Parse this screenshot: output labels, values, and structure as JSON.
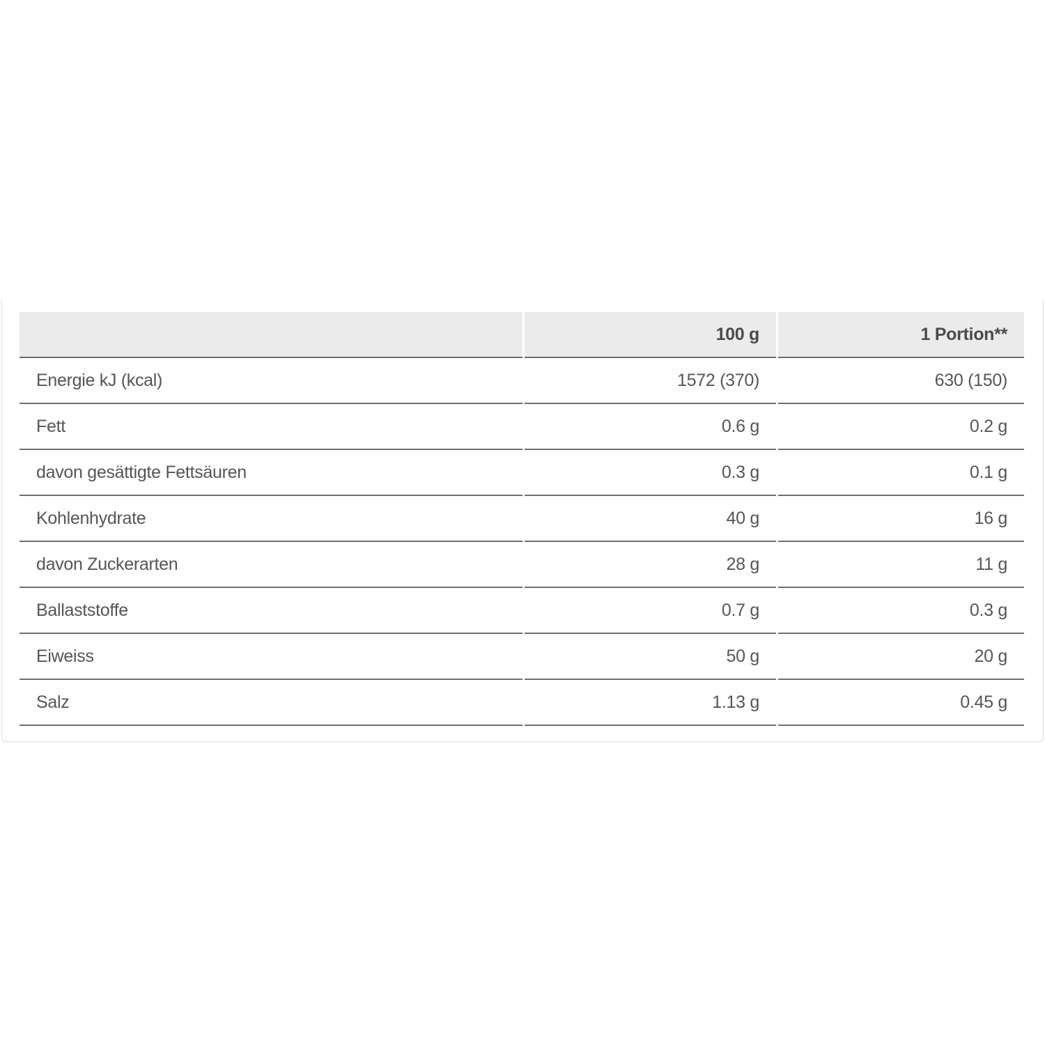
{
  "table": {
    "headers": [
      "",
      "100 g",
      "1 Portion**"
    ],
    "rows": [
      {
        "label": "Energie kJ (kcal)",
        "per100g": "1572 (370)",
        "portion": "630 (150)"
      },
      {
        "label": "Fett",
        "per100g": "0.6 g",
        "portion": "0.2 g"
      },
      {
        "label": "davon gesättigte Fettsäuren",
        "per100g": "0.3 g",
        "portion": "0.1 g"
      },
      {
        "label": "Kohlenhydrate",
        "per100g": "40 g",
        "portion": "16 g"
      },
      {
        "label": "davon Zuckerarten",
        "per100g": "28 g",
        "portion": "11 g"
      },
      {
        "label": "Ballaststoffe",
        "per100g": "0.7 g",
        "portion": "0.3 g"
      },
      {
        "label": "Eiweiss",
        "per100g": "50 g",
        "portion": "20 g"
      },
      {
        "label": "Salz",
        "per100g": "1.13 g",
        "portion": "0.45 g"
      }
    ]
  }
}
